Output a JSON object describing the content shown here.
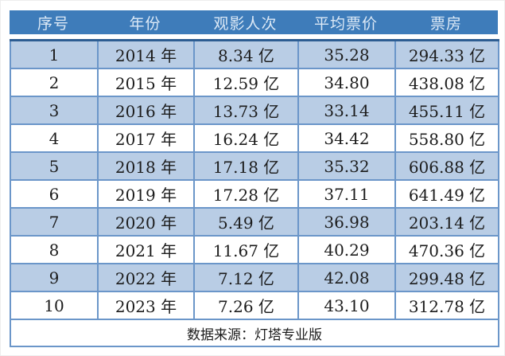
{
  "colors": {
    "header_bg": "#3e7cba",
    "header_fg": "#dce9f6",
    "row_alt_bg": "#b9cde5",
    "row_plain_bg": "#ffffff",
    "border_blue": "#4f81bd",
    "grid_blue": "#6b96c9",
    "header_rule": "#2d5d92",
    "body_text": "#1c1c1c"
  },
  "table": {
    "headers": [
      "序号",
      "年份",
      "观影人次",
      "平均票价",
      "票房"
    ],
    "rows": [
      [
        "1",
        "2014 年",
        "8.34 亿",
        "35.28",
        "294.33 亿"
      ],
      [
        "2",
        "2015 年",
        "12.59 亿",
        "34.80",
        "438.08 亿"
      ],
      [
        "3",
        "2016 年",
        "13.73 亿",
        "33.14",
        "455.11 亿"
      ],
      [
        "4",
        "2017 年",
        "16.24 亿",
        "34.42",
        "558.80 亿"
      ],
      [
        "5",
        "2018 年",
        "17.18 亿",
        "35.32",
        "606.88 亿"
      ],
      [
        "6",
        "2019 年",
        "17.28 亿",
        "37.11",
        "641.49 亿"
      ],
      [
        "7",
        "2020 年",
        "5.49 亿",
        "36.98",
        "203.14 亿"
      ],
      [
        "8",
        "2021 年",
        "11.67 亿",
        "40.29",
        "470.36 亿"
      ],
      [
        "9",
        "2022 年",
        "7.12 亿",
        "42.08",
        "299.48 亿"
      ],
      [
        "10",
        "2023 年",
        "7.26 亿",
        "43.10",
        "312.78 亿"
      ]
    ],
    "footer": "数据来源：灯塔专业版"
  },
  "chart_data": {
    "type": "table",
    "columns": [
      "序号",
      "年份",
      "观影人次",
      "平均票价",
      "票房"
    ],
    "years": [
      2014,
      2015,
      2016,
      2017,
      2018,
      2019,
      2020,
      2021,
      2022,
      2023
    ],
    "admissions_yi": [
      8.34,
      12.59,
      13.73,
      16.24,
      17.18,
      17.28,
      5.49,
      11.67,
      7.12,
      7.26
    ],
    "avg_ticket_price": [
      35.28,
      34.8,
      33.14,
      34.42,
      35.32,
      37.11,
      36.98,
      40.29,
      42.08,
      43.1
    ],
    "box_office_yi": [
      294.33,
      438.08,
      455.11,
      558.8,
      606.88,
      641.49,
      203.14,
      470.36,
      299.48,
      312.78
    ],
    "source_note": "数据来源：灯塔专业版"
  }
}
